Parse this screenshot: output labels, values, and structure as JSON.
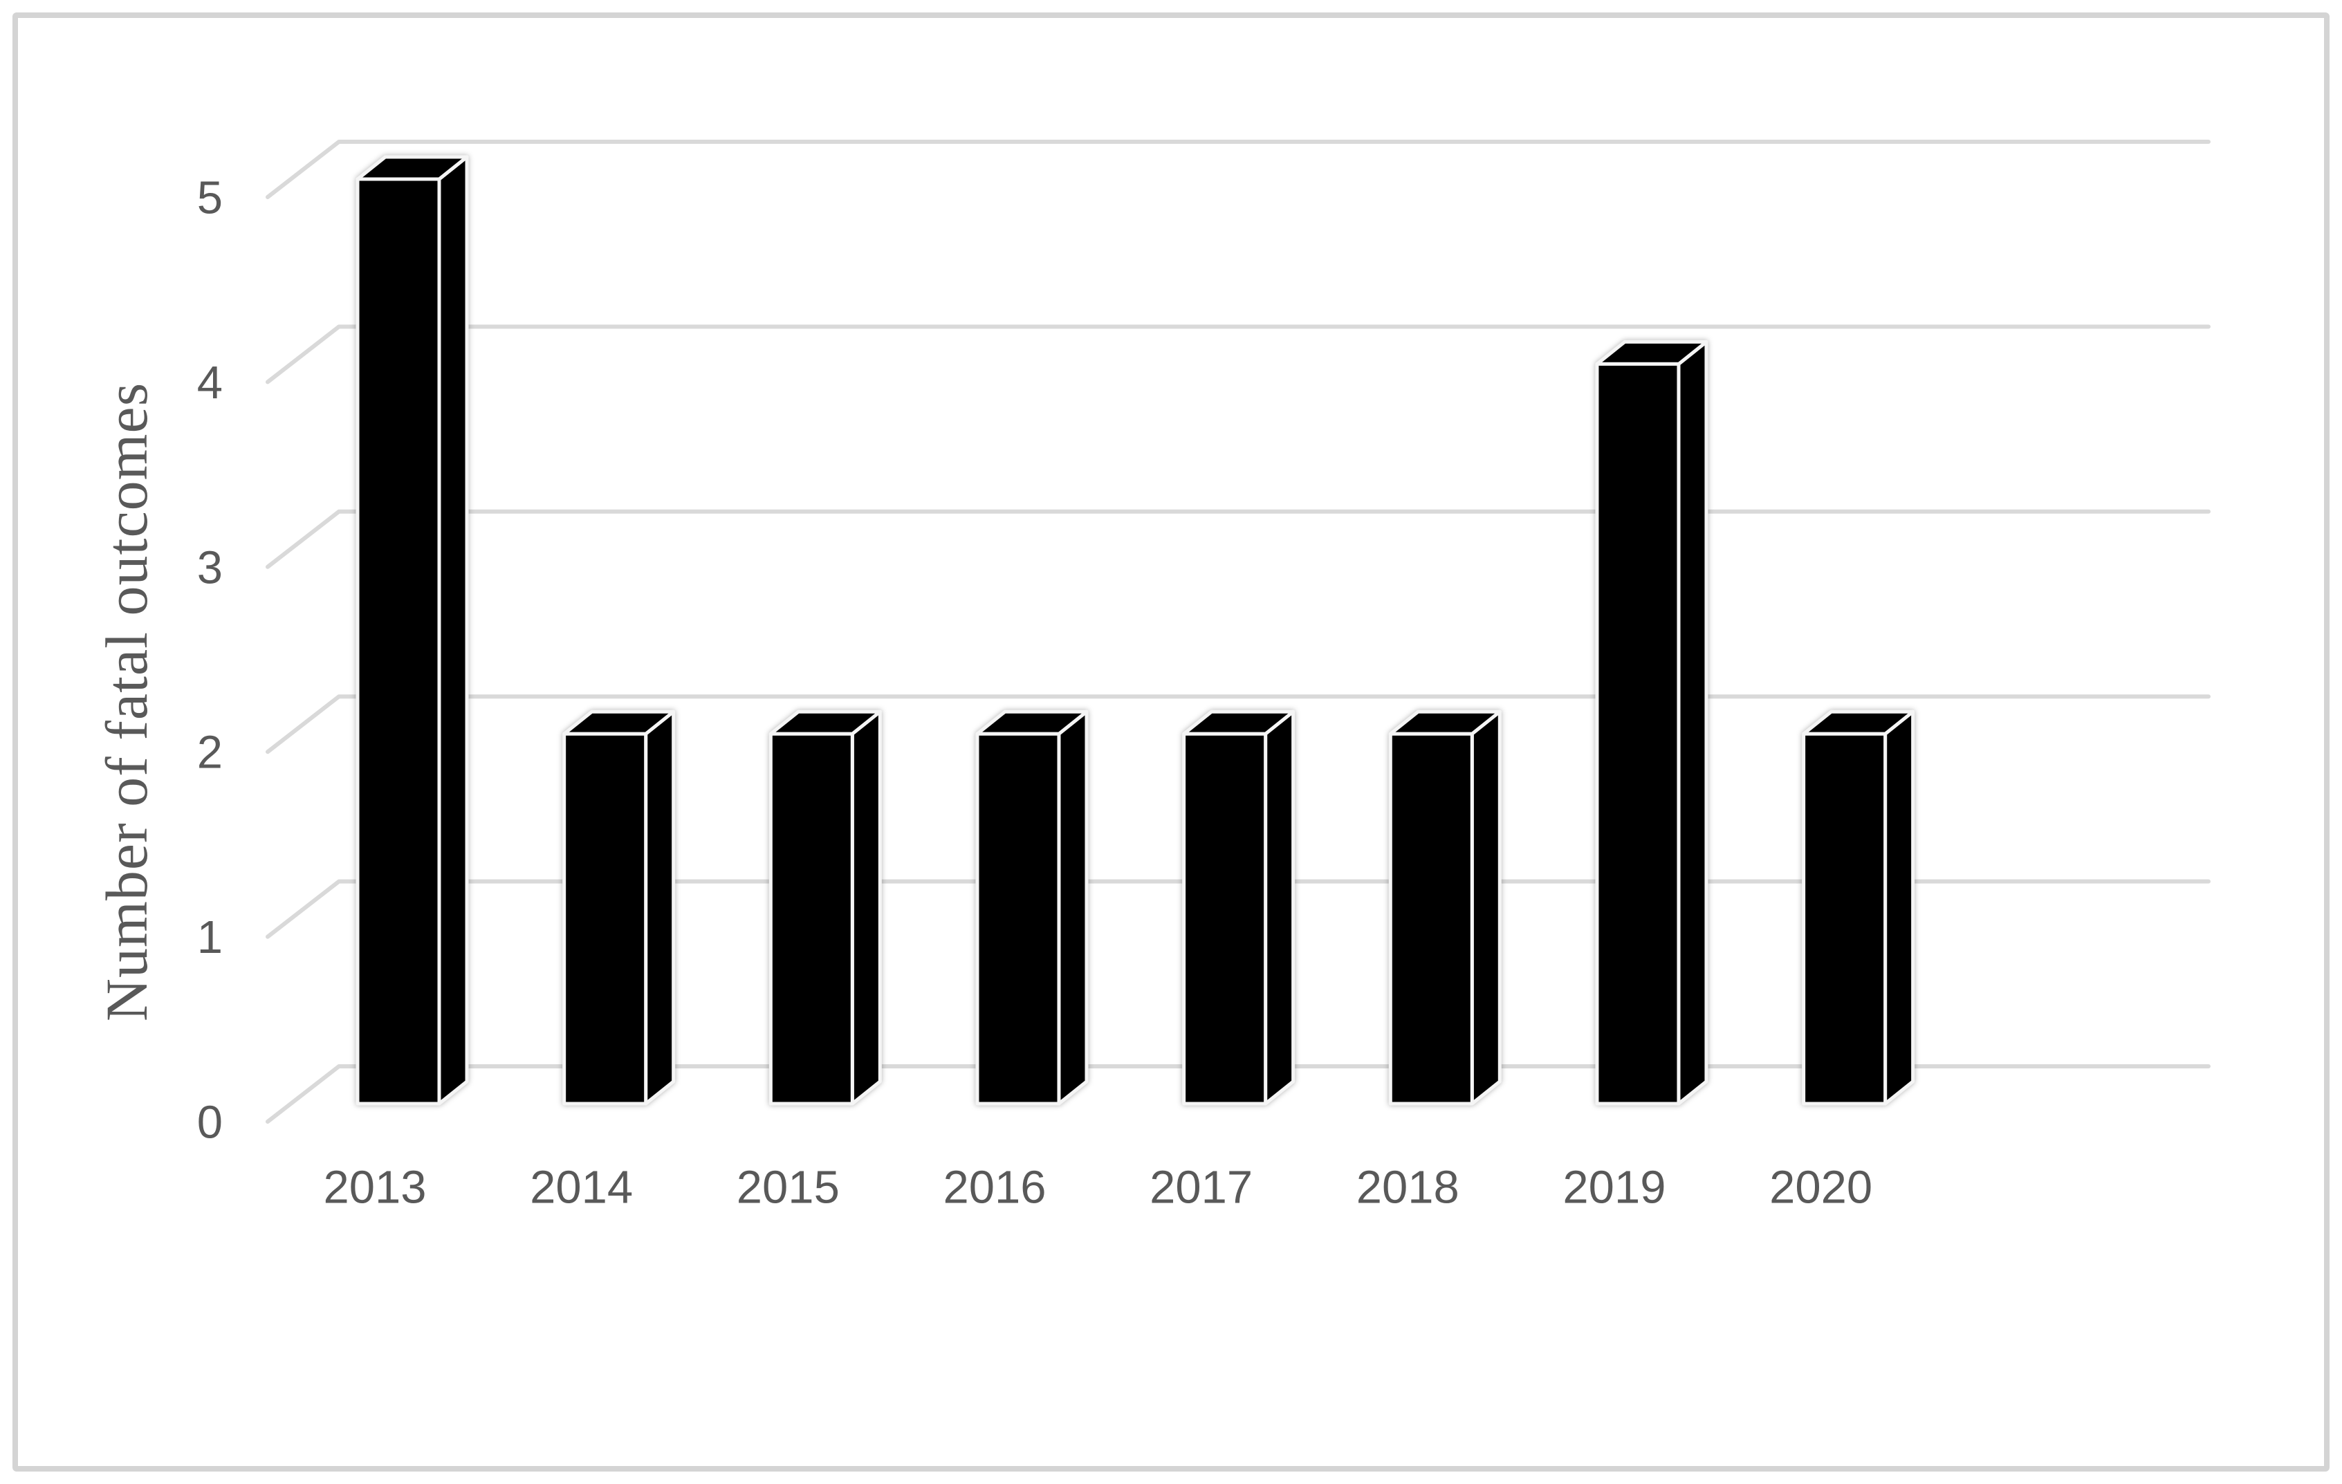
{
  "figure": {
    "background": "#ffffff",
    "border_color": "#d4d4d4",
    "text_color": "#595959",
    "gridline_color": "#d9d9d9",
    "bar_color": "#000000",
    "bar_edge_color": "#f5f5f5"
  },
  "chart_data": {
    "type": "bar",
    "style": "3d-column",
    "title": "",
    "xlabel": "",
    "ylabel": "Number of fatal outcomes",
    "categories": [
      "2013",
      "2014",
      "2015",
      "2016",
      "2017",
      "2018",
      "2019",
      "2020"
    ],
    "values": [
      5,
      2,
      2,
      2,
      2,
      2,
      4,
      2
    ],
    "yticks": [
      0,
      1,
      2,
      3,
      4,
      5
    ],
    "ylim": [
      0,
      5
    ],
    "grid": true,
    "legend": false
  }
}
